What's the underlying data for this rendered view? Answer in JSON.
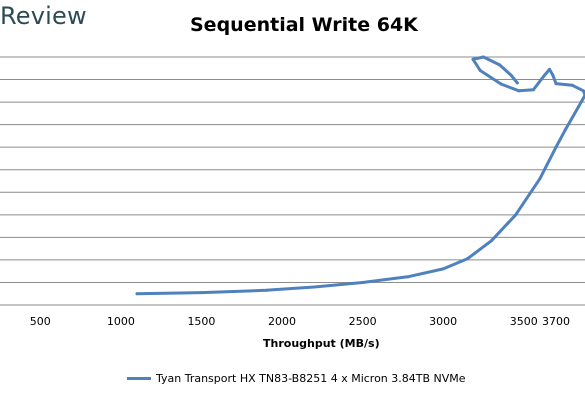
{
  "brand": "Review",
  "chart_data": {
    "type": "line",
    "title": "Sequential Write 64K",
    "xlabel": "Throughput (MB/s)",
    "ylabel": "",
    "xlim": [
      250,
      3880
    ],
    "ylim": [
      0,
      11
    ],
    "x_ticks": [
      500,
      1000,
      1500,
      2000,
      2500,
      3000,
      3500,
      3700
    ],
    "x_tick_labels": [
      "500",
      "1000",
      "1500",
      "2000",
      "2500",
      "3000",
      "3500",
      "3700"
    ],
    "grid": true,
    "legend_position": "bottom",
    "series": [
      {
        "name": "Tyan Transport HX TN83-B8251 4 x Micron 3.84TB NVMe",
        "color": "#4f81bd",
        "points": [
          [
            1100,
            0.5
          ],
          [
            1500,
            0.55
          ],
          [
            1900,
            0.65
          ],
          [
            2200,
            0.8
          ],
          [
            2500,
            1.0
          ],
          [
            2780,
            1.25
          ],
          [
            3000,
            1.6
          ],
          [
            3150,
            2.05
          ],
          [
            3300,
            2.85
          ],
          [
            3450,
            4.0
          ],
          [
            3600,
            5.6
          ],
          [
            3700,
            7.0
          ],
          [
            3760,
            7.8
          ],
          [
            3840,
            8.8
          ],
          [
            3880,
            9.3
          ],
          [
            3870,
            9.5
          ],
          [
            3800,
            9.75
          ],
          [
            3700,
            9.82
          ],
          [
            3680,
            10.2
          ],
          [
            3660,
            10.45
          ],
          [
            3630,
            10.2
          ],
          [
            3560,
            9.55
          ],
          [
            3470,
            9.5
          ],
          [
            3360,
            9.8
          ],
          [
            3230,
            10.4
          ],
          [
            3185,
            10.9
          ],
          [
            3250,
            11.0
          ],
          [
            3350,
            10.65
          ],
          [
            3420,
            10.2
          ],
          [
            3460,
            9.85
          ]
        ]
      }
    ]
  }
}
